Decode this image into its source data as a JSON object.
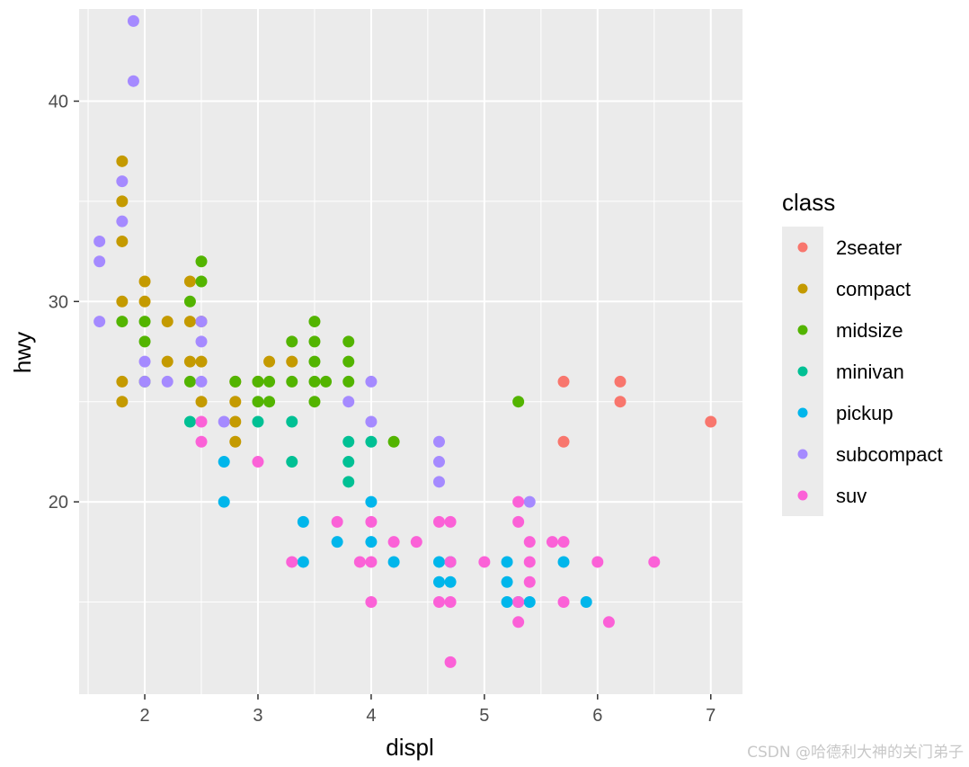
{
  "chart_data": {
    "type": "scatter",
    "xlabel": "displ",
    "ylabel": "hwy",
    "xlim": [
      1.42,
      7.28
    ],
    "ylim": [
      10.4,
      44.6
    ],
    "x_ticks": [
      2,
      3,
      4,
      5,
      6,
      7
    ],
    "y_ticks": [
      20,
      30,
      40
    ],
    "x_tick_labels": [
      "2",
      "3",
      "4",
      "5",
      "6",
      "7"
    ],
    "y_tick_labels": [
      "20",
      "30",
      "40"
    ],
    "grid": true,
    "legend_position": "right",
    "legend_title": "class",
    "series": [
      {
        "name": "2seater",
        "color": "#F8766D",
        "points": [
          [
            5.7,
            26
          ],
          [
            5.7,
            23
          ],
          [
            6.2,
            26
          ],
          [
            6.2,
            25
          ],
          [
            7.0,
            24
          ]
        ]
      },
      {
        "name": "compact",
        "color": "#C49A00",
        "points": [
          [
            1.8,
            37
          ],
          [
            1.8,
            35
          ],
          [
            1.8,
            33
          ],
          [
            1.8,
            30
          ],
          [
            1.8,
            26
          ],
          [
            1.8,
            25
          ],
          [
            2.0,
            31
          ],
          [
            2.0,
            30
          ],
          [
            2.2,
            29
          ],
          [
            2.2,
            27
          ],
          [
            2.4,
            31
          ],
          [
            2.4,
            29
          ],
          [
            2.4,
            27
          ],
          [
            2.5,
            29
          ],
          [
            2.5,
            27
          ],
          [
            2.5,
            25
          ],
          [
            2.8,
            26
          ],
          [
            2.8,
            25
          ],
          [
            2.8,
            24
          ],
          [
            2.8,
            23
          ],
          [
            3.0,
            26
          ],
          [
            3.1,
            27
          ],
          [
            3.3,
            27
          ]
        ]
      },
      {
        "name": "midsize",
        "color": "#53B400",
        "points": [
          [
            1.8,
            29
          ],
          [
            2.0,
            29
          ],
          [
            2.0,
            28
          ],
          [
            2.0,
            26
          ],
          [
            2.4,
            30
          ],
          [
            2.4,
            26
          ],
          [
            2.5,
            32
          ],
          [
            2.5,
            31
          ],
          [
            2.8,
            26
          ],
          [
            3.0,
            26
          ],
          [
            3.0,
            25
          ],
          [
            3.1,
            26
          ],
          [
            3.1,
            25
          ],
          [
            3.3,
            28
          ],
          [
            3.3,
            26
          ],
          [
            3.5,
            29
          ],
          [
            3.5,
            28
          ],
          [
            3.5,
            27
          ],
          [
            3.5,
            26
          ],
          [
            3.5,
            25
          ],
          [
            3.6,
            26
          ],
          [
            3.8,
            28
          ],
          [
            3.8,
            27
          ],
          [
            3.8,
            26
          ],
          [
            4.2,
            23
          ],
          [
            5.3,
            25
          ]
        ]
      },
      {
        "name": "minivan",
        "color": "#00C094",
        "points": [
          [
            2.4,
            24
          ],
          [
            3.0,
            24
          ],
          [
            3.3,
            24
          ],
          [
            3.3,
            22
          ],
          [
            3.8,
            23
          ],
          [
            3.8,
            22
          ],
          [
            3.8,
            21
          ],
          [
            4.0,
            23
          ]
        ]
      },
      {
        "name": "pickup",
        "color": "#00B6EB",
        "points": [
          [
            2.7,
            22
          ],
          [
            2.7,
            20
          ],
          [
            3.4,
            19
          ],
          [
            3.4,
            17
          ],
          [
            3.7,
            18
          ],
          [
            4.0,
            20
          ],
          [
            4.0,
            18
          ],
          [
            4.2,
            17
          ],
          [
            4.6,
            17
          ],
          [
            4.6,
            16
          ],
          [
            4.7,
            17
          ],
          [
            4.7,
            16
          ],
          [
            5.2,
            17
          ],
          [
            5.2,
            16
          ],
          [
            5.2,
            15
          ],
          [
            5.3,
            15
          ],
          [
            5.4,
            15
          ],
          [
            5.7,
            17
          ],
          [
            5.9,
            15
          ]
        ]
      },
      {
        "name": "subcompact",
        "color": "#A58AFF",
        "points": [
          [
            1.6,
            33
          ],
          [
            1.6,
            32
          ],
          [
            1.6,
            29
          ],
          [
            1.8,
            36
          ],
          [
            1.8,
            34
          ],
          [
            1.9,
            44
          ],
          [
            1.9,
            41
          ],
          [
            2.0,
            27
          ],
          [
            2.0,
            26
          ],
          [
            2.2,
            26
          ],
          [
            2.5,
            29
          ],
          [
            2.5,
            28
          ],
          [
            2.5,
            26
          ],
          [
            2.7,
            24
          ],
          [
            3.8,
            25
          ],
          [
            4.0,
            26
          ],
          [
            4.0,
            24
          ],
          [
            4.6,
            23
          ],
          [
            4.6,
            22
          ],
          [
            4.6,
            21
          ],
          [
            5.4,
            20
          ]
        ]
      },
      {
        "name": "suv",
        "color": "#FB61D7",
        "points": [
          [
            2.5,
            24
          ],
          [
            2.5,
            23
          ],
          [
            3.0,
            22
          ],
          [
            3.3,
            17
          ],
          [
            3.7,
            19
          ],
          [
            3.9,
            17
          ],
          [
            4.0,
            19
          ],
          [
            4.0,
            17
          ],
          [
            4.0,
            15
          ],
          [
            4.2,
            18
          ],
          [
            4.4,
            18
          ],
          [
            4.6,
            19
          ],
          [
            4.6,
            15
          ],
          [
            4.7,
            19
          ],
          [
            4.7,
            17
          ],
          [
            4.7,
            15
          ],
          [
            4.7,
            12
          ],
          [
            5.0,
            17
          ],
          [
            5.3,
            20
          ],
          [
            5.3,
            19
          ],
          [
            5.3,
            15
          ],
          [
            5.3,
            14
          ],
          [
            5.4,
            18
          ],
          [
            5.4,
            17
          ],
          [
            5.4,
            16
          ],
          [
            5.6,
            18
          ],
          [
            5.7,
            18
          ],
          [
            5.7,
            15
          ],
          [
            6.0,
            17
          ],
          [
            6.1,
            14
          ],
          [
            6.5,
            17
          ]
        ]
      }
    ]
  },
  "watermark": "CSDN @哈德利大神的关门弟子"
}
